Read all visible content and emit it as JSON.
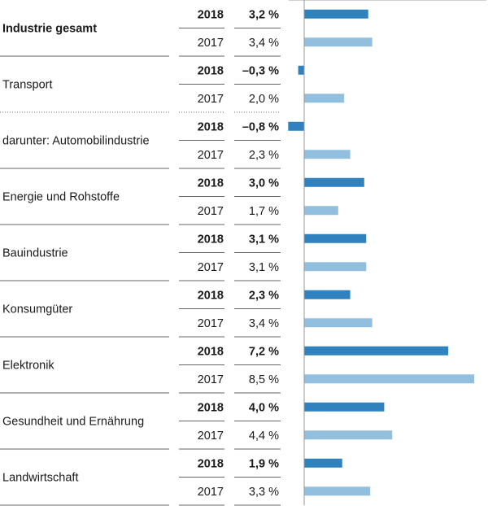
{
  "chart_data": {
    "type": "bar",
    "orientation": "horizontal",
    "unit": "%",
    "years": [
      "2018",
      "2017"
    ],
    "colors": {
      "2018": "#2f82bd",
      "2017": "#93bfde",
      "axis": "#9a9a9a",
      "divider": "#666666"
    },
    "rows": [
      {
        "label": "Industrie gesamt",
        "bold": true,
        "v2018": 3.2,
        "v2017": 3.4,
        "l2018": "3,2 %",
        "l2017": "3,4 %",
        "divider_after": "solid"
      },
      {
        "label": "Transport",
        "bold": false,
        "v2018": -0.3,
        "v2017": 2.0,
        "l2018": "–0,3 %",
        "l2017": "2,0 %",
        "divider_after": "dotted"
      },
      {
        "label": "darunter: Automobilindustrie",
        "bold": false,
        "v2018": -0.8,
        "v2017": 2.3,
        "l2018": "–0,8 %",
        "l2017": "2,3 %",
        "divider_after": "solid"
      },
      {
        "label": "Energie und Rohstoffe",
        "bold": false,
        "v2018": 3.0,
        "v2017": 1.7,
        "l2018": "3,0 %",
        "l2017": "1,7 %",
        "divider_after": "solid"
      },
      {
        "label": "Bauindustrie",
        "bold": false,
        "v2018": 3.1,
        "v2017": 3.1,
        "l2018": "3,1 %",
        "l2017": "3,1 %",
        "divider_after": "solid"
      },
      {
        "label": "Konsumgüter",
        "bold": false,
        "v2018": 2.3,
        "v2017": 3.4,
        "l2018": "2,3 %",
        "l2017": "3,4 %",
        "divider_after": "solid"
      },
      {
        "label": "Elektronik",
        "bold": false,
        "v2018": 7.2,
        "v2017": 8.5,
        "l2018": "7,2 %",
        "l2017": "8,5 %",
        "divider_after": "solid"
      },
      {
        "label": "Gesundheit und Ernährung",
        "bold": false,
        "v2018": 4.0,
        "v2017": 4.4,
        "l2018": "4,0 %",
        "l2017": "4,4 %",
        "divider_after": "solid"
      },
      {
        "label": "Landwirtschaft",
        "bold": false,
        "v2018": 1.9,
        "v2017": 3.3,
        "l2018": "1,9 %",
        "l2017": "3,3 %",
        "divider_after": "solid"
      }
    ],
    "xlim": [
      -0.8,
      8.5
    ]
  }
}
